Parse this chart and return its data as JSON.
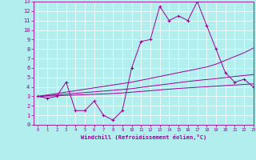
{
  "xlabel": "Windchill (Refroidissement éolien,°C)",
  "bg_color": "#b2eeee",
  "grid_color": "#ffffff",
  "line_color": "#990099",
  "x_data": [
    0,
    1,
    2,
    3,
    4,
    5,
    6,
    7,
    8,
    9,
    10,
    11,
    12,
    13,
    14,
    15,
    16,
    17,
    18,
    19,
    20,
    21,
    22,
    23
  ],
  "y_main": [
    3.0,
    2.8,
    3.0,
    4.5,
    1.5,
    1.5,
    2.5,
    1.0,
    0.5,
    1.5,
    6.0,
    8.8,
    9.0,
    12.5,
    11.0,
    11.5,
    11.0,
    13.0,
    10.5,
    8.0,
    5.5,
    4.5,
    4.8,
    4.0
  ],
  "y_line1": [
    3.0,
    3.15,
    3.3,
    3.45,
    3.6,
    3.75,
    3.9,
    4.05,
    4.2,
    4.35,
    4.5,
    4.7,
    4.9,
    5.1,
    5.3,
    5.5,
    5.7,
    5.9,
    6.1,
    6.4,
    6.8,
    7.2,
    7.6,
    8.1
  ],
  "y_line2": [
    3.0,
    3.08,
    3.16,
    3.24,
    3.32,
    3.4,
    3.48,
    3.56,
    3.64,
    3.72,
    3.82,
    3.95,
    4.08,
    4.2,
    4.32,
    4.45,
    4.57,
    4.68,
    4.78,
    4.88,
    4.98,
    5.1,
    5.2,
    5.3
  ],
  "y_line3": [
    3.0,
    3.03,
    3.06,
    3.1,
    3.14,
    3.18,
    3.22,
    3.26,
    3.3,
    3.36,
    3.44,
    3.52,
    3.6,
    3.68,
    3.76,
    3.84,
    3.9,
    3.96,
    4.02,
    4.08,
    4.14,
    4.2,
    4.26,
    4.32
  ],
  "ylim": [
    0,
    13
  ],
  "xlim": [
    -0.5,
    23
  ],
  "yticks": [
    0,
    1,
    2,
    3,
    4,
    5,
    6,
    7,
    8,
    9,
    10,
    11,
    12,
    13
  ],
  "xticks": [
    0,
    1,
    2,
    3,
    4,
    5,
    6,
    7,
    8,
    9,
    10,
    11,
    12,
    13,
    14,
    15,
    16,
    17,
    18,
    19,
    20,
    21,
    22,
    23
  ],
  "marker": "+"
}
